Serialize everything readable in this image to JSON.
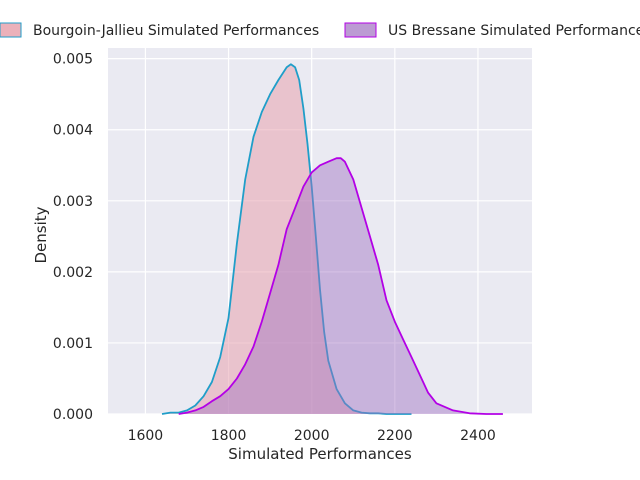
{
  "chart_data": {
    "type": "area",
    "title": "",
    "xlabel": "Simulated Performances",
    "ylabel": "Density",
    "xlim": [
      1510,
      2530
    ],
    "ylim": [
      0,
      0.00515
    ],
    "xticks": [
      1600,
      1800,
      2000,
      2200,
      2400
    ],
    "xtick_labels": [
      "1600",
      "1800",
      "2000",
      "2200",
      "2400"
    ],
    "yticks": [
      0,
      0.001,
      0.002,
      0.003,
      0.004,
      0.005
    ],
    "ytick_labels": [
      "0.000",
      "0.001",
      "0.002",
      "0.003",
      "0.004",
      "0.005"
    ],
    "grid": true,
    "legend_position": "top",
    "series": [
      {
        "name": "Bourgoin-Jallieu Simulated Performances",
        "line_color": "#1f9ec9",
        "fill_color": "#e8a3ae",
        "x": [
          1640,
          1660,
          1680,
          1700,
          1720,
          1740,
          1760,
          1780,
          1800,
          1820,
          1840,
          1860,
          1880,
          1900,
          1920,
          1940,
          1950,
          1960,
          1970,
          1980,
          1990,
          2000,
          2010,
          2020,
          2030,
          2040,
          2060,
          2080,
          2100,
          2120,
          2140,
          2160,
          2180,
          2200,
          2240
        ],
        "y": [
          0.0,
          2e-05,
          2e-05,
          5e-05,
          0.00012,
          0.00025,
          0.00045,
          0.0008,
          0.00135,
          0.0024,
          0.0033,
          0.0039,
          0.00425,
          0.0045,
          0.0047,
          0.00488,
          0.00492,
          0.00488,
          0.0047,
          0.0043,
          0.0038,
          0.0032,
          0.0025,
          0.00175,
          0.00115,
          0.00075,
          0.00035,
          0.00015,
          5e-05,
          2e-05,
          1e-05,
          1e-05,
          0.0,
          0.0,
          0.0
        ]
      },
      {
        "name": "US Bressane Simulated Performances",
        "line_color": "#b300e6",
        "fill_color": "#a070c0",
        "x": [
          1680,
          1700,
          1720,
          1740,
          1760,
          1780,
          1800,
          1820,
          1840,
          1860,
          1880,
          1900,
          1920,
          1940,
          1960,
          1980,
          2000,
          2020,
          2040,
          2060,
          2070,
          2080,
          2100,
          2120,
          2140,
          2160,
          2180,
          2200,
          2220,
          2240,
          2260,
          2280,
          2300,
          2340,
          2380,
          2420,
          2460
        ],
        "y": [
          0.0,
          2e-05,
          5e-05,
          0.0001,
          0.00018,
          0.00025,
          0.00035,
          0.0005,
          0.0007,
          0.00095,
          0.0013,
          0.0017,
          0.0021,
          0.0026,
          0.0029,
          0.0032,
          0.0034,
          0.0035,
          0.00355,
          0.0036,
          0.0036,
          0.00355,
          0.0033,
          0.0029,
          0.0025,
          0.0021,
          0.0016,
          0.0013,
          0.00105,
          0.0008,
          0.00055,
          0.0003,
          0.00015,
          5e-05,
          1e-05,
          0.0,
          0.0
        ]
      }
    ]
  }
}
